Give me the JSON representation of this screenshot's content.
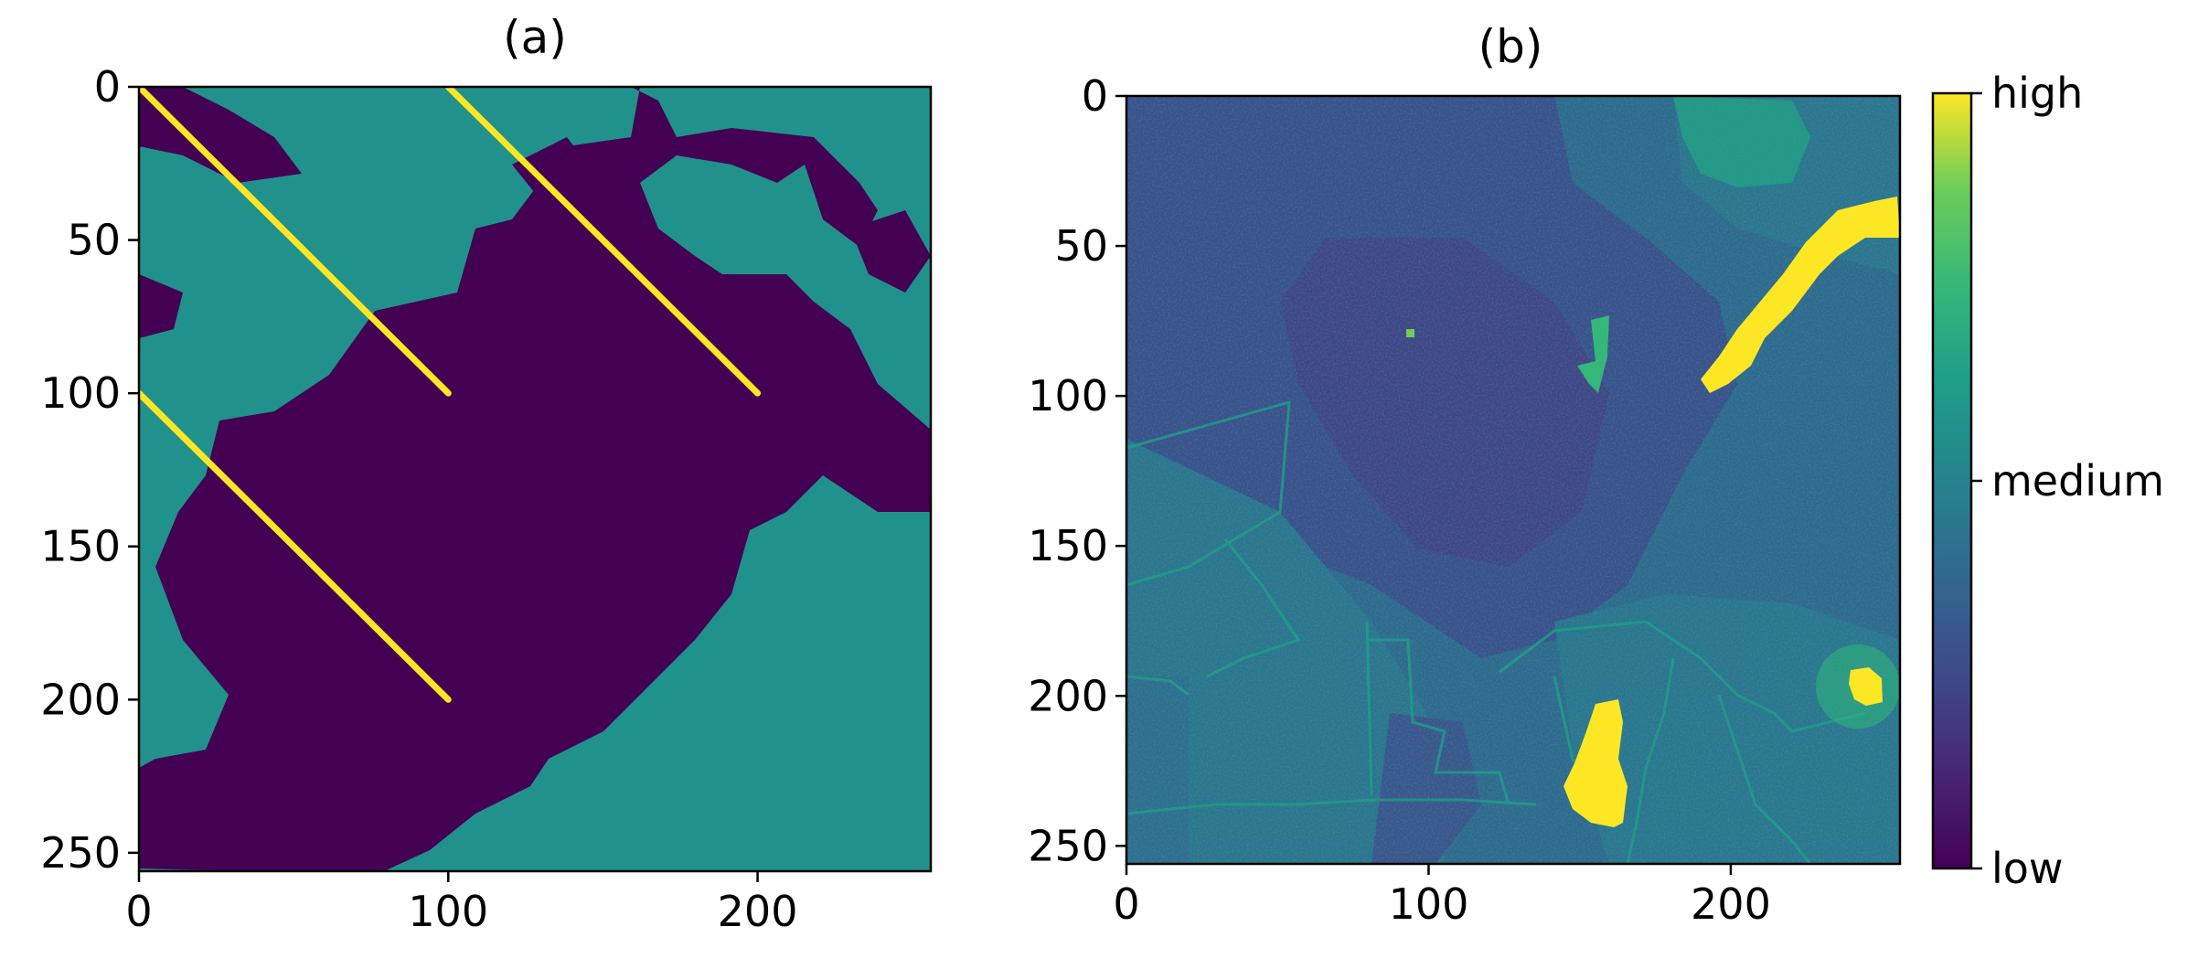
{
  "chart_data": [
    {
      "type": "heatmap",
      "title": "(a)",
      "xlim": [
        0,
        256
      ],
      "ylim": [
        256,
        0
      ],
      "xticks": [
        0,
        100,
        200
      ],
      "yticks": [
        0,
        50,
        100,
        150,
        200,
        250
      ],
      "cmap": "viridis",
      "levels": [
        "#440154",
        "#21918c",
        "#fde725"
      ],
      "lines": [
        {
          "x": [
            0,
            100
          ],
          "y": [
            0,
            100
          ]
        },
        {
          "x": [
            100,
            200
          ],
          "y": [
            0,
            100
          ]
        },
        {
          "x": [
            0,
            100
          ],
          "y": [
            100,
            200
          ]
        }
      ]
    },
    {
      "type": "heatmap",
      "title": "(b)",
      "xlim": [
        0,
        256
      ],
      "ylim": [
        256,
        0
      ],
      "xticks": [
        0,
        100,
        200
      ],
      "yticks": [
        0,
        50,
        100,
        150,
        200,
        250
      ],
      "cmap": "viridis",
      "colorbar": {
        "labels": [
          "high",
          "medium",
          "low"
        ]
      },
      "hotspots": [
        {
          "x": 230,
          "y": 60
        },
        {
          "x": 158,
          "y": 215
        },
        {
          "x": 245,
          "y": 195
        }
      ]
    }
  ]
}
